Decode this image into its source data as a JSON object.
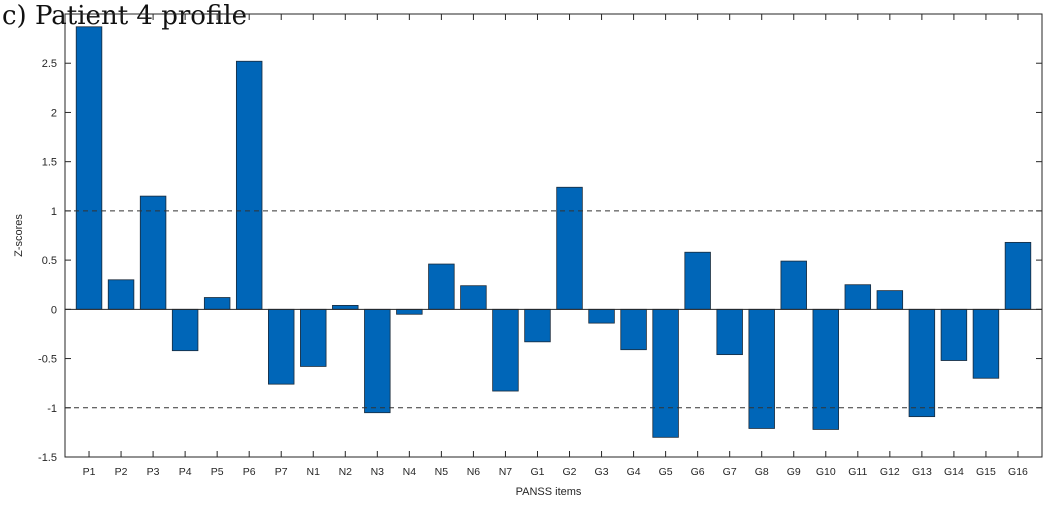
{
  "figure": {
    "panel_heading": "c) Patient 4 profile"
  },
  "chart_data": {
    "type": "bar",
    "title": "",
    "xlabel": "PANSS items",
    "ylabel": "Z-scores",
    "categories": [
      "P1",
      "P2",
      "P3",
      "P4",
      "P5",
      "P6",
      "P7",
      "N1",
      "N2",
      "N3",
      "N4",
      "N5",
      "N6",
      "N7",
      "G1",
      "G2",
      "G3",
      "G4",
      "G5",
      "G6",
      "G7",
      "G8",
      "G9",
      "G10",
      "G11",
      "G12",
      "G13",
      "G14",
      "G15",
      "G16"
    ],
    "values": [
      2.87,
      0.3,
      1.15,
      -0.42,
      0.12,
      2.52,
      -0.76,
      -0.58,
      0.04,
      -1.05,
      -0.05,
      0.46,
      0.24,
      -0.83,
      -0.33,
      1.24,
      -0.14,
      -0.41,
      -1.3,
      0.58,
      -0.46,
      -1.21,
      0.49,
      -1.22,
      0.25,
      0.19,
      -1.09,
      -0.52,
      -0.7,
      0.68
    ],
    "ylim": [
      -1.5,
      3
    ],
    "yticks": [
      -1.5,
      -1,
      -0.5,
      0,
      0.5,
      1,
      1.5,
      2,
      2.5
    ],
    "reference_lines": [
      1,
      -1
    ],
    "reference_line_style": "dashed",
    "zero_line": true,
    "grid": false,
    "legend": "none",
    "bar_color": "#0066b8",
    "bar_edge_color": "#1a2a3a",
    "axis_color": "#262626"
  }
}
